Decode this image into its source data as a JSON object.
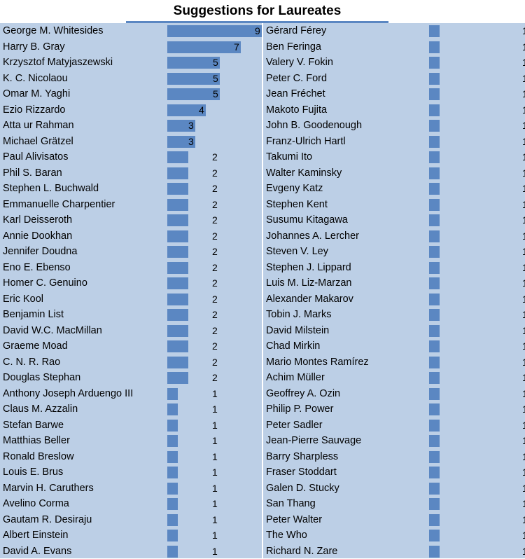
{
  "chart_data": {
    "type": "bar",
    "title": "Suggestions for Laureates",
    "columns": [
      {
        "categories": [
          "George M. Whitesides",
          "Harry B. Gray",
          "Krzysztof Matyjaszewski",
          "K. C. Nicolaou",
          "Omar M. Yaghi",
          "Ezio Rizzardo",
          "Atta ur Rahman",
          "Michael Grätzel",
          "Paul Alivisatos",
          "Phil S. Baran",
          "Stephen L. Buchwald",
          "Emmanuelle Charpentier",
          "Karl Deisseroth",
          "Annie Dookhan",
          "Jennifer Doudna",
          "Eno E.  Ebenso",
          "Homer C. Genuino",
          "Eric Kool",
          "Benjamin List",
          "David W.C. MacMillan",
          "Graeme Moad",
          "C. N. R. Rao",
          "Douglas Stephan",
          "Anthony Joseph Arduengo III",
          "Claus M. Azzalin",
          "Stefan Barwe",
          "Matthias Beller",
          "Ronald Breslow",
          "Louis E. Brus",
          "Marvin H. Caruthers",
          "Avelino Corma",
          "Gautam R. Desiraju",
          "Albert Einstein",
          "David A. Evans"
        ],
        "values": [
          9,
          7,
          5,
          5,
          5,
          4,
          3,
          3,
          2,
          2,
          2,
          2,
          2,
          2,
          2,
          2,
          2,
          2,
          2,
          2,
          2,
          2,
          2,
          1,
          1,
          1,
          1,
          1,
          1,
          1,
          1,
          1,
          1,
          1
        ]
      },
      {
        "categories": [
          "Gérard Férey",
          "Ben Feringa",
          "Valery V. Fokin",
          "Peter C. Ford",
          "Jean Fréchet",
          "Makoto Fujita",
          "John B. Goodenough",
          "Franz-Ulrich Hartl",
          "Takumi Ito",
          "Walter Kaminsky",
          "Evgeny Katz",
          "Stephen Kent",
          "Susumu Kitagawa",
          "Johannes A. Lercher",
          "Steven V. Ley",
          "Stephen J. Lippard",
          "Luis M. Liz-Marzan",
          "Alexander Makarov",
          "Tobin J. Marks",
          "David Milstein",
          "Chad Mirkin",
          "Mario Montes Ramírez",
          "Achim Müller",
          "Geoffrey A. Ozin",
          "Philip P. Power",
          "Peter Sadler",
          "Jean-Pierre Sauvage",
          "Barry Sharpless",
          "Fraser Stoddart",
          "Galen D. Stucky",
          "San Thang",
          "Peter Walter",
          "The Who",
          "Richard N. Zare"
        ],
        "values": [
          1,
          1,
          1,
          1,
          1,
          1,
          1,
          1,
          1,
          1,
          1,
          1,
          1,
          1,
          1,
          1,
          1,
          1,
          1,
          1,
          1,
          1,
          1,
          1,
          1,
          1,
          1,
          1,
          1,
          1,
          1,
          1,
          1,
          1
        ]
      }
    ],
    "legend": "none",
    "grid": false,
    "colors": {
      "bar": "#5b87c2",
      "background": "#bccfe6",
      "title_rule": "#5b87c2"
    }
  }
}
